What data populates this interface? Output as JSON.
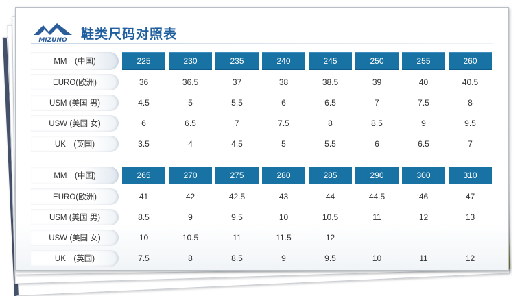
{
  "header": {
    "brand": "MIZUNO",
    "title": "鞋类尺码对照表"
  },
  "colors": {
    "header_cell": "#1972a4",
    "title": "#1f5f9f",
    "logo": "#2a5d9a"
  },
  "labels": [
    "MM　(中国)",
    "EURO(欧洲)",
    "USM (美国 男)",
    "USW (美国 女)",
    "UK　(英国)"
  ],
  "tables": [
    {
      "mm": [
        "225",
        "230",
        "235",
        "240",
        "245",
        "250",
        "255",
        "260"
      ],
      "euro": [
        "36",
        "36.5",
        "37",
        "38",
        "38.5",
        "39",
        "40",
        "40.5"
      ],
      "usm": [
        "4.5",
        "5",
        "5.5",
        "6",
        "6.5",
        "7",
        "7.5",
        "8"
      ],
      "usw": [
        "6",
        "6.5",
        "7",
        "7.5",
        "8",
        "8.5",
        "9",
        "9.5"
      ],
      "uk": [
        "3.5",
        "4",
        "4.5",
        "5",
        "5.5",
        "6",
        "6.5",
        "7"
      ]
    },
    {
      "mm": [
        "265",
        "270",
        "275",
        "280",
        "285",
        "290",
        "300",
        "310"
      ],
      "euro": [
        "41",
        "42",
        "42.5",
        "43",
        "44",
        "44.5",
        "46",
        "47"
      ],
      "usm": [
        "8.5",
        "9",
        "9.5",
        "10",
        "10.5",
        "11",
        "12",
        "13"
      ],
      "usw": [
        "10",
        "10.5",
        "11",
        "11.5",
        "12",
        "",
        "",
        ""
      ],
      "uk": [
        "7.5",
        "8",
        "8.5",
        "9",
        "9.5",
        "10",
        "11",
        "12"
      ]
    }
  ]
}
